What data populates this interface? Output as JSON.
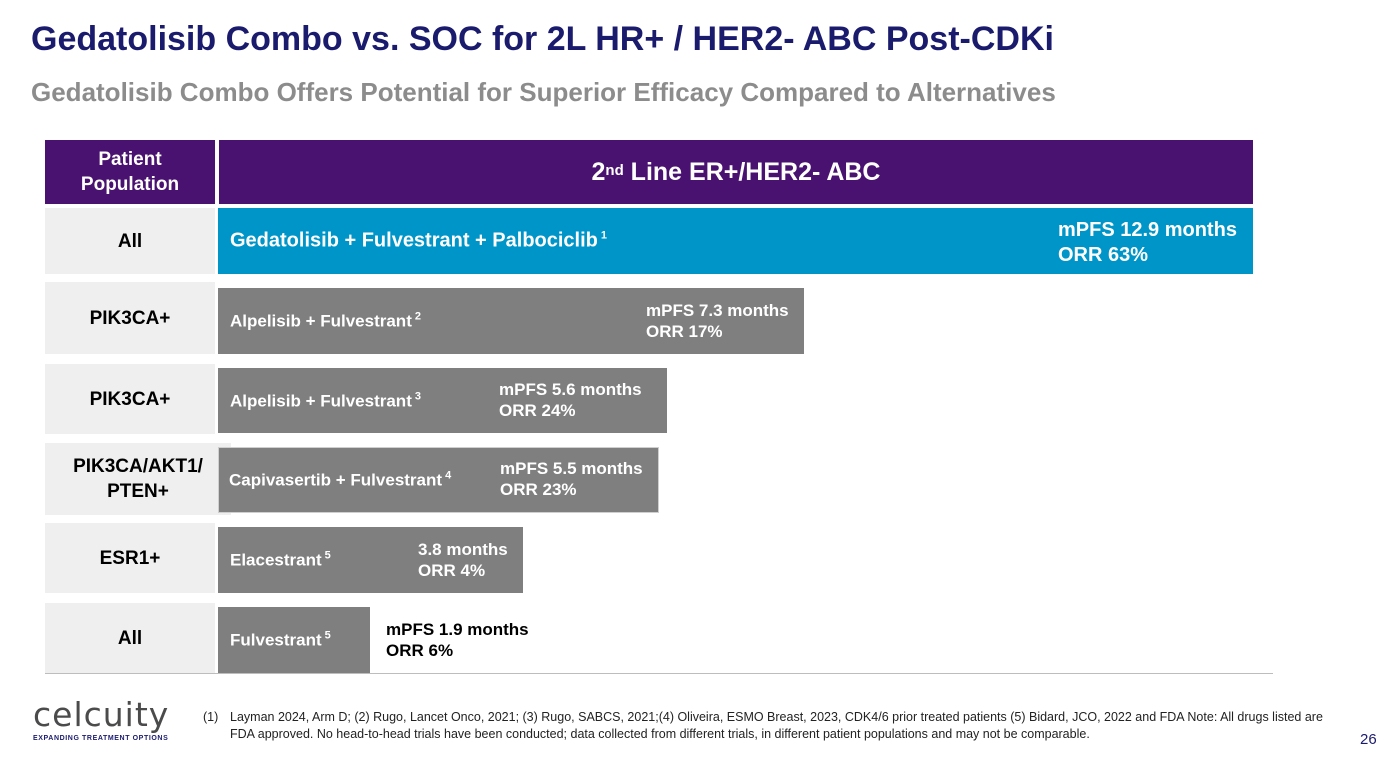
{
  "title": "Gedatolisib Combo vs. SOC for 2L HR+ / HER2- ABC Post-CDKi",
  "subtitle": "Gedatolisib Combo Offers Potential for Superior Efficacy Compared to Alternatives",
  "header": {
    "left_line1": "Patient",
    "left_line2": "Population",
    "right_main_prefix": "2",
    "right_sup": "nd",
    "right_main_suffix": " Line ER+/HER2- ABC"
  },
  "chart_data": {
    "type": "bar",
    "orientation": "horizontal",
    "metric": "mPFS (months)",
    "categories": [
      "Gedatolisib + Fulvestrant + Palbociclib",
      "Alpelisib + Fulvestrant",
      "Alpelisib + Fulvestrant",
      "Capivasertib + Fulvestrant",
      "Elacestrant",
      "Fulvestrant"
    ],
    "values": [
      12.9,
      7.3,
      5.6,
      5.5,
      3.8,
      1.9
    ],
    "xlim": [
      0,
      12.9
    ],
    "rows": [
      {
        "population": "All",
        "label": "Gedatolisib + Fulvestrant + Palbociclib",
        "ref": "1",
        "mpfs": 12.9,
        "stat1": "mPFS 12.9 months",
        "stat2": "ORR 63%",
        "highlight": true
      },
      {
        "population": "PIK3CA+",
        "label": "Alpelisib + Fulvestrant",
        "ref": "2",
        "mpfs": 7.3,
        "stat1": "mPFS 7.3 months",
        "stat2": "ORR 17%"
      },
      {
        "population": "PIK3CA+",
        "label": "Alpelisib + Fulvestrant",
        "ref": "3",
        "mpfs": 5.6,
        "stat1": "mPFS 5.6 months",
        "stat2": "ORR 24%"
      },
      {
        "population": "PIK3CA/AKT1/ PTEN+",
        "label": "Capivasertib + Fulvestrant",
        "ref": "4",
        "mpfs": 5.5,
        "stat1": "mPFS 5.5 months",
        "stat2": "ORR 23%"
      },
      {
        "population": "ESR1+",
        "label": "Elacestrant",
        "ref": "5",
        "mpfs": 3.8,
        "stat1": "3.8 months",
        "stat2": "ORR 4%"
      },
      {
        "population": "All",
        "label": "Fulvestrant",
        "ref": "5",
        "mpfs": 1.9,
        "stat1": "mPFS 1.9 months",
        "stat2": "ORR 6%"
      }
    ],
    "colors": {
      "highlight": "#0095c8",
      "comparator": "#7f7f7f",
      "header": "#4a1270"
    }
  },
  "logo": {
    "word": "celcuity",
    "tagline": "EXPANDING TREATMENT OPTIONS"
  },
  "footnote": {
    "num": "(1)",
    "text": "Layman 2024, Arm D; (2)  Rugo, Lancet Onco, 2021; (3) Rugo, SABCS, 2021;(4) Oliveira, ESMO Breast, 2023, CDK4/6 prior treated patients (5) Bidard, JCO, 2022 and FDA  Note: All drugs listed are FDA approved. No head-to-head trials have been conducted; data collected from different trials, in different patient populations and may not be comparable."
  },
  "page_number": "26"
}
